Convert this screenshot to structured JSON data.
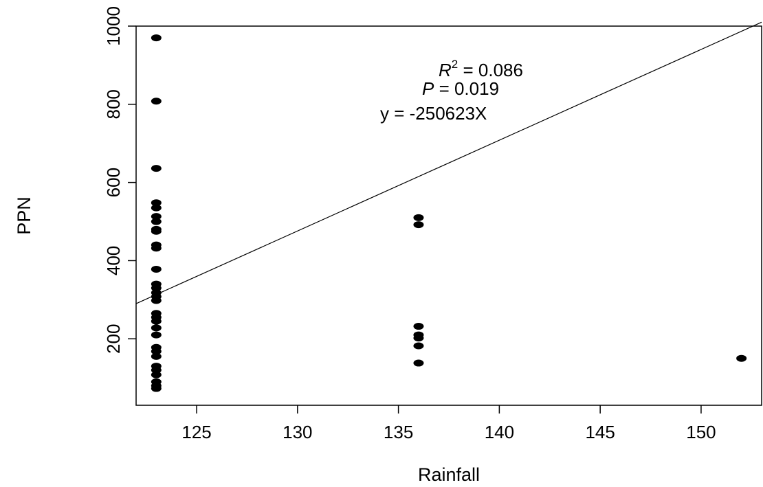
{
  "chart_data": {
    "type": "scatter",
    "title": "",
    "xlabel": "Rainfall",
    "ylabel": "PPN",
    "xlim": [
      122,
      153
    ],
    "ylim": [
      30,
      1000
    ],
    "xticks": [
      125,
      130,
      135,
      140,
      145,
      150
    ],
    "yticks": [
      200,
      400,
      600,
      800,
      1000
    ],
    "grid": false,
    "legend": "none",
    "point_color": "#000000",
    "points": [
      {
        "x": 123,
        "y": 970
      },
      {
        "x": 123,
        "y": 808
      },
      {
        "x": 123,
        "y": 636
      },
      {
        "x": 123,
        "y": 548
      },
      {
        "x": 123,
        "y": 535
      },
      {
        "x": 123,
        "y": 513
      },
      {
        "x": 123,
        "y": 500
      },
      {
        "x": 123,
        "y": 480
      },
      {
        "x": 123,
        "y": 475
      },
      {
        "x": 123,
        "y": 440
      },
      {
        "x": 123,
        "y": 432
      },
      {
        "x": 123,
        "y": 378
      },
      {
        "x": 123,
        "y": 340
      },
      {
        "x": 123,
        "y": 330
      },
      {
        "x": 123,
        "y": 318
      },
      {
        "x": 123,
        "y": 308
      },
      {
        "x": 123,
        "y": 298
      },
      {
        "x": 123,
        "y": 265
      },
      {
        "x": 123,
        "y": 255
      },
      {
        "x": 123,
        "y": 245
      },
      {
        "x": 123,
        "y": 228
      },
      {
        "x": 123,
        "y": 210
      },
      {
        "x": 123,
        "y": 178
      },
      {
        "x": 123,
        "y": 168
      },
      {
        "x": 123,
        "y": 155
      },
      {
        "x": 123,
        "y": 130
      },
      {
        "x": 123,
        "y": 120
      },
      {
        "x": 123,
        "y": 108
      },
      {
        "x": 123,
        "y": 90
      },
      {
        "x": 123,
        "y": 80
      },
      {
        "x": 123,
        "y": 73
      },
      {
        "x": 136,
        "y": 510
      },
      {
        "x": 136,
        "y": 492
      },
      {
        "x": 136,
        "y": 232
      },
      {
        "x": 136,
        "y": 210
      },
      {
        "x": 136,
        "y": 202
      },
      {
        "x": 136,
        "y": 182
      },
      {
        "x": 136,
        "y": 138
      },
      {
        "x": 152,
        "y": 150
      }
    ],
    "trend_line": {
      "x": [
        122,
        153
      ],
      "y": [
        290,
        1010
      ]
    },
    "annotations": {
      "r2_symbol": "R",
      "r2_sup": "2",
      "r2_value": " = 0.086",
      "p_symbol": "P",
      "p_value": " = 0.019",
      "equation": "y = -250623X"
    }
  }
}
